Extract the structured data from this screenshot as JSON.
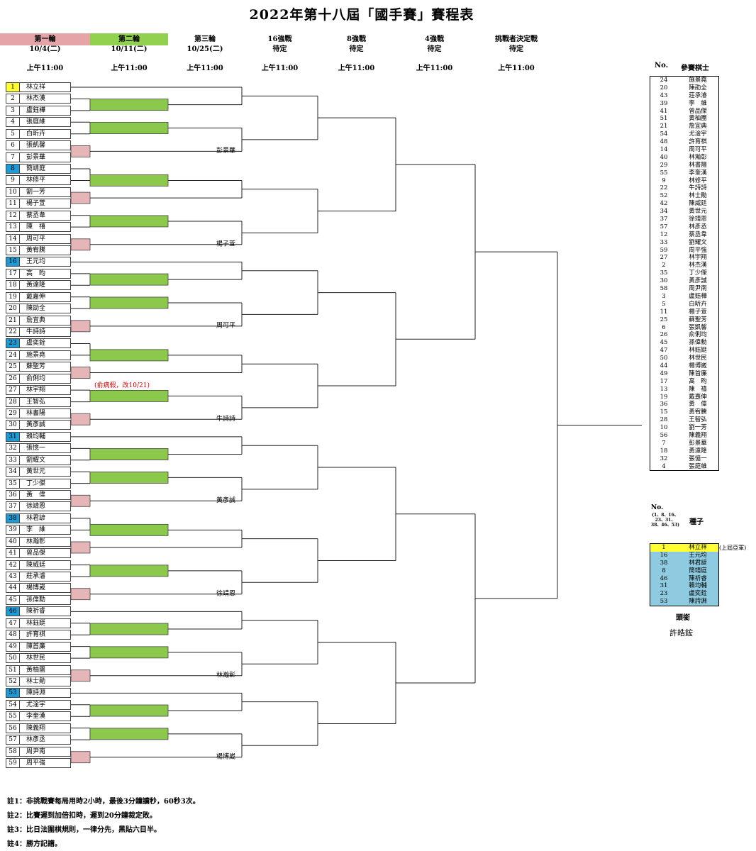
{
  "title": "2022年第十八屆「國手賽」賽程表",
  "rounds": [
    {
      "label": "第一輪",
      "date": "10/4(二)",
      "time": "上午11:00",
      "color": "#e5a5a8"
    },
    {
      "label": "第二輪",
      "date": "10/11(二)",
      "time": "上午11:00",
      "color": "#92d050"
    },
    {
      "label": "第三輪",
      "date": "10/25(二)",
      "time": "上午11:00",
      "color": ""
    },
    {
      "label": "16強戰",
      "date": "待定",
      "time": "上午11:00",
      "color": ""
    },
    {
      "label": "8強戰",
      "date": "待定",
      "time": "上午11:00",
      "color": ""
    },
    {
      "label": "4強戰",
      "date": "待定",
      "time": "上午11:00",
      "color": ""
    },
    {
      "label": "挑戰者決定戰",
      "date": "待定",
      "time": "上午11:00",
      "color": ""
    }
  ],
  "colors": {
    "round1_box": "#e5b5b8",
    "round2_box": "#8cc84b",
    "seed_top": "#ffff33",
    "seed": "#1e9ad6",
    "seed_list": "#8ecbe0"
  },
  "players": [
    {
      "no": "1",
      "name": "林立祥",
      "seed": "top"
    },
    {
      "no": "2",
      "name": "林杰漢",
      "seed": ""
    },
    {
      "no": "3",
      "name": "盧鈺樺",
      "seed": ""
    },
    {
      "no": "4",
      "name": "張庭維",
      "seed": ""
    },
    {
      "no": "5",
      "name": "白昕卉",
      "seed": ""
    },
    {
      "no": "6",
      "name": "張凱馨",
      "seed": ""
    },
    {
      "no": "7",
      "name": "彭景華",
      "seed": ""
    },
    {
      "no": "8",
      "name": "簡靖庭",
      "seed": "yes"
    },
    {
      "no": "9",
      "name": "林修平",
      "seed": ""
    },
    {
      "no": "10",
      "name": "劉一芳",
      "seed": ""
    },
    {
      "no": "11",
      "name": "楊子萱",
      "seed": ""
    },
    {
      "no": "12",
      "name": "蔡丞韋",
      "seed": ""
    },
    {
      "no": "13",
      "name": "陳　禧",
      "seed": ""
    },
    {
      "no": "14",
      "name": "周可平",
      "seed": ""
    },
    {
      "no": "15",
      "name": "黃宥騰",
      "seed": ""
    },
    {
      "no": "16",
      "name": "王元均",
      "seed": "yes"
    },
    {
      "no": "17",
      "name": "高　昀",
      "seed": ""
    },
    {
      "no": "18",
      "name": "黃遠隆",
      "seed": ""
    },
    {
      "no": "19",
      "name": "戴嘉伸",
      "seed": ""
    },
    {
      "no": "20",
      "name": "陳劭全",
      "seed": ""
    },
    {
      "no": "21",
      "name": "詹宜典",
      "seed": ""
    },
    {
      "no": "22",
      "name": "牛詩詩",
      "seed": ""
    },
    {
      "no": "23",
      "name": "盧奕銓",
      "seed": "yes"
    },
    {
      "no": "24",
      "name": "施景堯",
      "seed": ""
    },
    {
      "no": "25",
      "name": "蘇聖芳",
      "seed": ""
    },
    {
      "no": "26",
      "name": "俞俐均",
      "seed": ""
    },
    {
      "no": "27",
      "name": "林宇翔",
      "seed": ""
    },
    {
      "no": "28",
      "name": "王智弘",
      "seed": ""
    },
    {
      "no": "29",
      "name": "林書陽",
      "seed": ""
    },
    {
      "no": "30",
      "name": "黃彥誠",
      "seed": ""
    },
    {
      "no": "31",
      "name": "賴均輔",
      "seed": "yes"
    },
    {
      "no": "32",
      "name": "張憶一",
      "seed": ""
    },
    {
      "no": "33",
      "name": "劉耀文",
      "seed": ""
    },
    {
      "no": "34",
      "name": "黃世元",
      "seed": ""
    },
    {
      "no": "35",
      "name": "丁少傑",
      "seed": ""
    },
    {
      "no": "36",
      "name": "黃　偉",
      "seed": ""
    },
    {
      "no": "37",
      "name": "徐靖恩",
      "seed": ""
    },
    {
      "no": "38",
      "name": "林君諺",
      "seed": "yes"
    },
    {
      "no": "39",
      "name": "李　維",
      "seed": ""
    },
    {
      "no": "40",
      "name": "林瀚彰",
      "seed": ""
    },
    {
      "no": "41",
      "name": "曾品傑",
      "seed": ""
    },
    {
      "no": "42",
      "name": "陳威廷",
      "seed": ""
    },
    {
      "no": "43",
      "name": "莊承濬",
      "seed": ""
    },
    {
      "no": "44",
      "name": "楊博崴",
      "seed": ""
    },
    {
      "no": "45",
      "name": "孫偉勳",
      "seed": ""
    },
    {
      "no": "46",
      "name": "陳祈睿",
      "seed": "yes"
    },
    {
      "no": "47",
      "name": "林鈺娗",
      "seed": ""
    },
    {
      "no": "48",
      "name": "許育祺",
      "seed": ""
    },
    {
      "no": "49",
      "name": "陳首廉",
      "seed": ""
    },
    {
      "no": "50",
      "name": "林世民",
      "seed": ""
    },
    {
      "no": "51",
      "name": "黃柚團",
      "seed": ""
    },
    {
      "no": "52",
      "name": "林士勛",
      "seed": ""
    },
    {
      "no": "53",
      "name": "陳詩淵",
      "seed": "yes"
    },
    {
      "no": "54",
      "name": "尤淦宇",
      "seed": ""
    },
    {
      "no": "55",
      "name": "李奎漢",
      "seed": ""
    },
    {
      "no": "56",
      "name": "陳義翔",
      "seed": ""
    },
    {
      "no": "57",
      "name": "林彥丞",
      "seed": ""
    },
    {
      "no": "58",
      "name": "周尹南",
      "seed": ""
    },
    {
      "no": "59",
      "name": "周平強",
      "seed": ""
    }
  ],
  "round3_winners": [
    "彭景華",
    "楊子萱",
    "周可平",
    "牛詩詩",
    "黃彥誠",
    "徐靖恩",
    "林瀚彰",
    "楊博崴",
    "林士勛",
    "周尹南"
  ],
  "round1_note": "(俞病假，改10/21)",
  "player_list": {
    "header_no": "No.",
    "header_name": "參賽棋士",
    "rows": [
      [
        "24",
        "施景堯"
      ],
      [
        "20",
        "陳劭全"
      ],
      [
        "43",
        "莊承濬"
      ],
      [
        "39",
        "李　維"
      ],
      [
        "41",
        "曾品傑"
      ],
      [
        "51",
        "黃柚團"
      ],
      [
        "21",
        "詹宜典"
      ],
      [
        "54",
        "尤淦宇"
      ],
      [
        "48",
        "許育祺"
      ],
      [
        "14",
        "周可平"
      ],
      [
        "40",
        "林瀚彰"
      ],
      [
        "29",
        "林書陽"
      ],
      [
        "55",
        "李奎漢"
      ],
      [
        "9",
        "林修平"
      ],
      [
        "22",
        "牛詩詩"
      ],
      [
        "52",
        "林士勛"
      ],
      [
        "42",
        "陳威廷"
      ],
      [
        "34",
        "黃世元"
      ],
      [
        "37",
        "徐靖恩"
      ],
      [
        "57",
        "林彥丞"
      ],
      [
        "12",
        "蔡丞韋"
      ],
      [
        "33",
        "劉耀文"
      ],
      [
        "59",
        "周平強"
      ],
      [
        "27",
        "林宇翔"
      ],
      [
        "2",
        "林杰漢"
      ],
      [
        "35",
        "丁少傑"
      ],
      [
        "30",
        "黃彥誠"
      ],
      [
        "58",
        "周尹南"
      ],
      [
        "3",
        "盧鈺樺"
      ],
      [
        "5",
        "白昕卉"
      ],
      [
        "11",
        "楊子萱"
      ],
      [
        "25",
        "蘇聖芳"
      ],
      [
        "6",
        "張凱馨"
      ],
      [
        "26",
        "俞俐均"
      ],
      [
        "45",
        "孫偉勳"
      ],
      [
        "47",
        "林鈺娗"
      ],
      [
        "50",
        "林世民"
      ],
      [
        "44",
        "楊博崴"
      ],
      [
        "49",
        "陳首廉"
      ],
      [
        "17",
        "高　昀"
      ],
      [
        "13",
        "陳　禧"
      ],
      [
        "19",
        "戴嘉伸"
      ],
      [
        "36",
        "黃　偉"
      ],
      [
        "15",
        "黃宥騰"
      ],
      [
        "28",
        "王智弘"
      ],
      [
        "10",
        "劉一芳"
      ],
      [
        "56",
        "陳義翔"
      ],
      [
        "7",
        "彭景華"
      ],
      [
        "18",
        "黃遠隆"
      ],
      [
        "32",
        "張憶一"
      ],
      [
        "4",
        "張庭維"
      ]
    ]
  },
  "seeds": {
    "header_no": "No.",
    "header_no_sub": "(1、8、16、23、31、38、46、53)",
    "header_name": "種子",
    "rows": [
      [
        "1",
        "林立祥"
      ],
      [
        "16",
        "王元均"
      ],
      [
        "38",
        "林君諺"
      ],
      [
        "8",
        "簡靖庭"
      ],
      [
        "46",
        "陳祈睿"
      ],
      [
        "31",
        "賴均輔"
      ],
      [
        "23",
        "盧奕銓"
      ],
      [
        "53",
        "陳詩淵"
      ]
    ],
    "first_note": "(上屆亞軍)",
    "referee_label": "頭銜",
    "referee_name": "許皓鋐"
  },
  "notes": [
    "註1：非挑戰賽每局用時2小時，最後3分鐘讀秒，60秒3次。",
    "註2：比賽遲到加倍扣時，遲到20分鐘裁定敗。",
    "註3：比日法圍棋規則，一律分先，黑貼六目半。",
    "註4：勝方記譜。"
  ]
}
